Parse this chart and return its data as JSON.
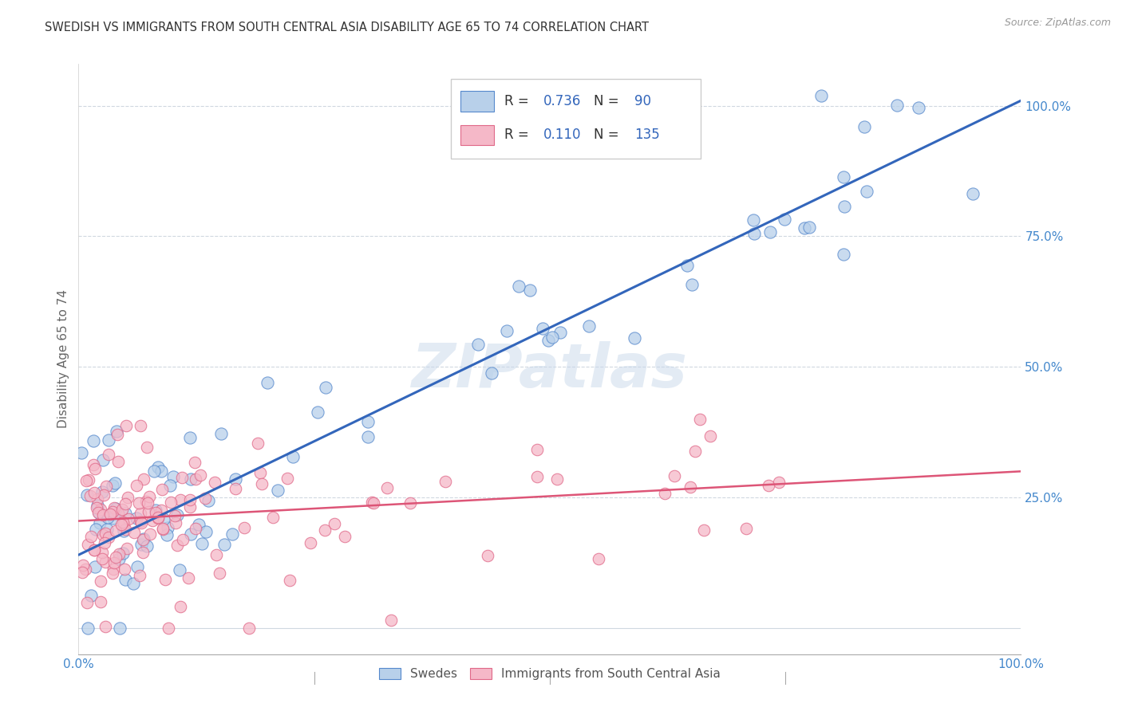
{
  "title": "SWEDISH VS IMMIGRANTS FROM SOUTH CENTRAL ASIA DISABILITY AGE 65 TO 74 CORRELATION CHART",
  "source": "Source: ZipAtlas.com",
  "ylabel": "Disability Age 65 to 74",
  "xlabel": "",
  "xlim": [
    0.0,
    1.0
  ],
  "ylim": [
    -0.05,
    1.08
  ],
  "blue_R": 0.736,
  "blue_N": 90,
  "pink_R": 0.11,
  "pink_N": 135,
  "blue_fill": "#b8d0ea",
  "pink_fill": "#f5b8c8",
  "blue_edge": "#5588cc",
  "pink_edge": "#e06888",
  "blue_line_color": "#3366bb",
  "pink_line_color": "#dd5577",
  "legend_label_blue": "Swedes",
  "legend_label_pink": "Immigrants from South Central Asia",
  "ytick_labels": [
    "25.0%",
    "50.0%",
    "75.0%",
    "100.0%"
  ],
  "ytick_values": [
    0.25,
    0.5,
    0.75,
    1.0
  ],
  "xtick_labels_bottom": [
    "0.0%",
    "100.0%"
  ],
  "xtick_values_bottom": [
    0.0,
    1.0
  ],
  "background_color": "#ffffff",
  "grid_color": "#d0d8e0",
  "title_color": "#333333",
  "axis_label_color": "#666666",
  "tick_label_color": "#4488cc",
  "watermark_color": "#c8d8ea",
  "watermark_text": "ZIPatlas",
  "blue_line_intercept": 0.14,
  "blue_line_slope": 0.87,
  "pink_line_intercept": 0.205,
  "pink_line_slope": 0.095
}
